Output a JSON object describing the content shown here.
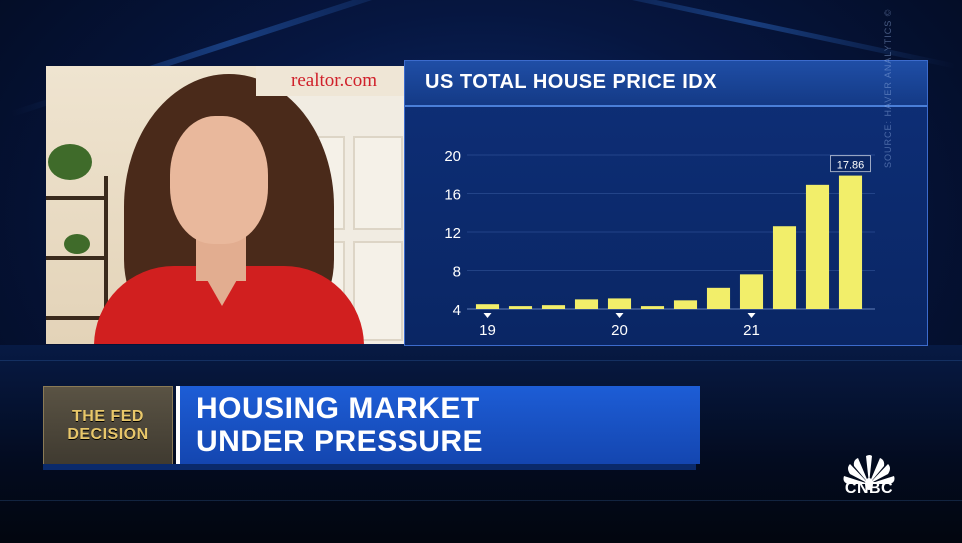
{
  "video": {
    "logo": "realtor.com"
  },
  "chart_data": {
    "type": "bar",
    "title": "US TOTAL HOUSE PRICE IDX",
    "source": "SOURCE: HAVER ANALYTICS ©",
    "yticks": [
      "20",
      "16",
      "12",
      "8",
      "4"
    ],
    "ylim": [
      4,
      20
    ],
    "xticks": [
      {
        "label": "19",
        "index": 0
      },
      {
        "label": "20",
        "index": 4
      },
      {
        "label": "21",
        "index": 8
      }
    ],
    "values": [
      4.5,
      4.3,
      4.4,
      5.0,
      5.1,
      4.3,
      4.9,
      6.2,
      7.6,
      12.6,
      16.9,
      17.86
    ],
    "last_label": "17.86",
    "bar_color": "#f2ee6a",
    "grid": true
  },
  "lower_third": {
    "badge_line1": "THE FED",
    "badge_line2": "DECISION",
    "headline_line1": "HOUSING MARKET",
    "headline_line2": "UNDER PRESSURE"
  },
  "network": {
    "name": "CNBC",
    "logo_icon": "peacock-icon"
  }
}
